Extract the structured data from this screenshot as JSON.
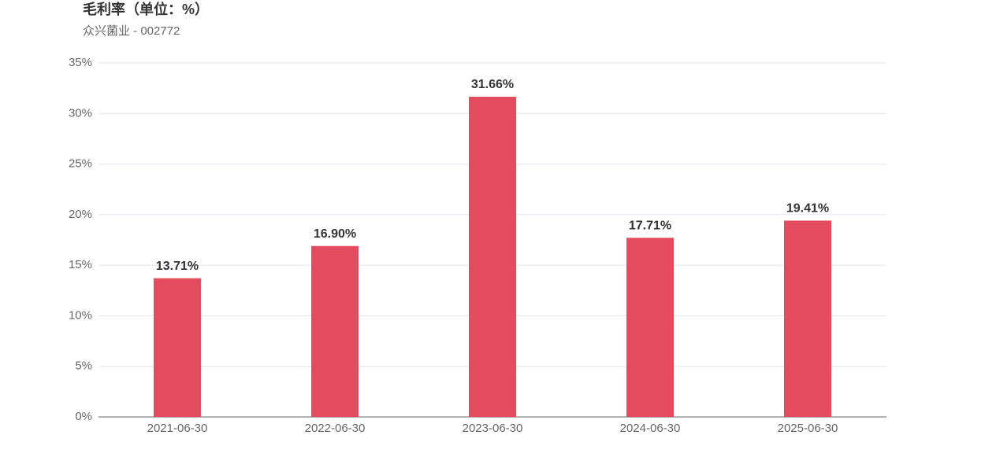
{
  "chart_data": {
    "type": "bar",
    "title": "毛利率（单位：%）",
    "subtitle": "众兴菌业 - 002772",
    "categories": [
      "2021-06-30",
      "2022-06-30",
      "2023-06-30",
      "2024-06-30",
      "2025-06-30"
    ],
    "values": [
      13.71,
      16.9,
      31.66,
      17.71,
      19.41
    ],
    "value_labels": [
      "13.71%",
      "16.90%",
      "31.66%",
      "17.71%",
      "19.41%"
    ],
    "color": "#e34b5e",
    "ylim": [
      0,
      35
    ],
    "yticks": [
      {
        "value": 0,
        "label": "0%"
      },
      {
        "value": 5,
        "label": "5%"
      },
      {
        "value": 10,
        "label": "10%"
      },
      {
        "value": 15,
        "label": "15%"
      },
      {
        "value": 20,
        "label": "20%"
      },
      {
        "value": 25,
        "label": "25%"
      },
      {
        "value": 30,
        "label": "30%"
      },
      {
        "value": 35,
        "label": "35%"
      }
    ],
    "grid": true
  }
}
